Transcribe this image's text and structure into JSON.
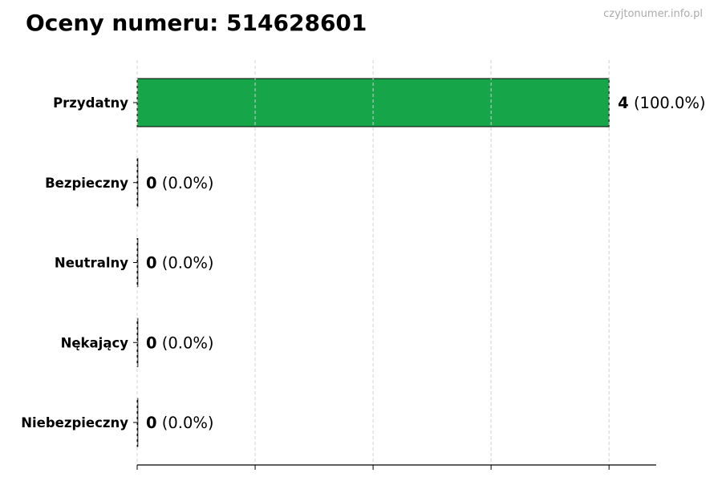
{
  "title": "Oceny numeru: 514628601",
  "watermark": "czyjtonumer.info.pl",
  "chart_data": {
    "type": "bar",
    "orientation": "horizontal",
    "title": "Oceny numeru: 514628601",
    "categories": [
      "Przydatny",
      "Bezpieczny",
      "Neutralny",
      "Nękający",
      "Niebezpieczny"
    ],
    "values": [
      4,
      0,
      0,
      0,
      0
    ],
    "percentages": [
      "100.0%",
      "0.0%",
      "0.0%",
      "0.0%",
      "0.0%"
    ],
    "colors": [
      "#17a54a",
      "#17a54a",
      "#17a54a",
      "#17a54a",
      "#17a54a"
    ],
    "xlim": [
      0,
      4.4
    ],
    "xticks": [
      0,
      1,
      2,
      3,
      4
    ],
    "xtick_labels_shown": false,
    "xlabel": "",
    "ylabel": "",
    "grid": "x, dashed",
    "legend": "none"
  }
}
